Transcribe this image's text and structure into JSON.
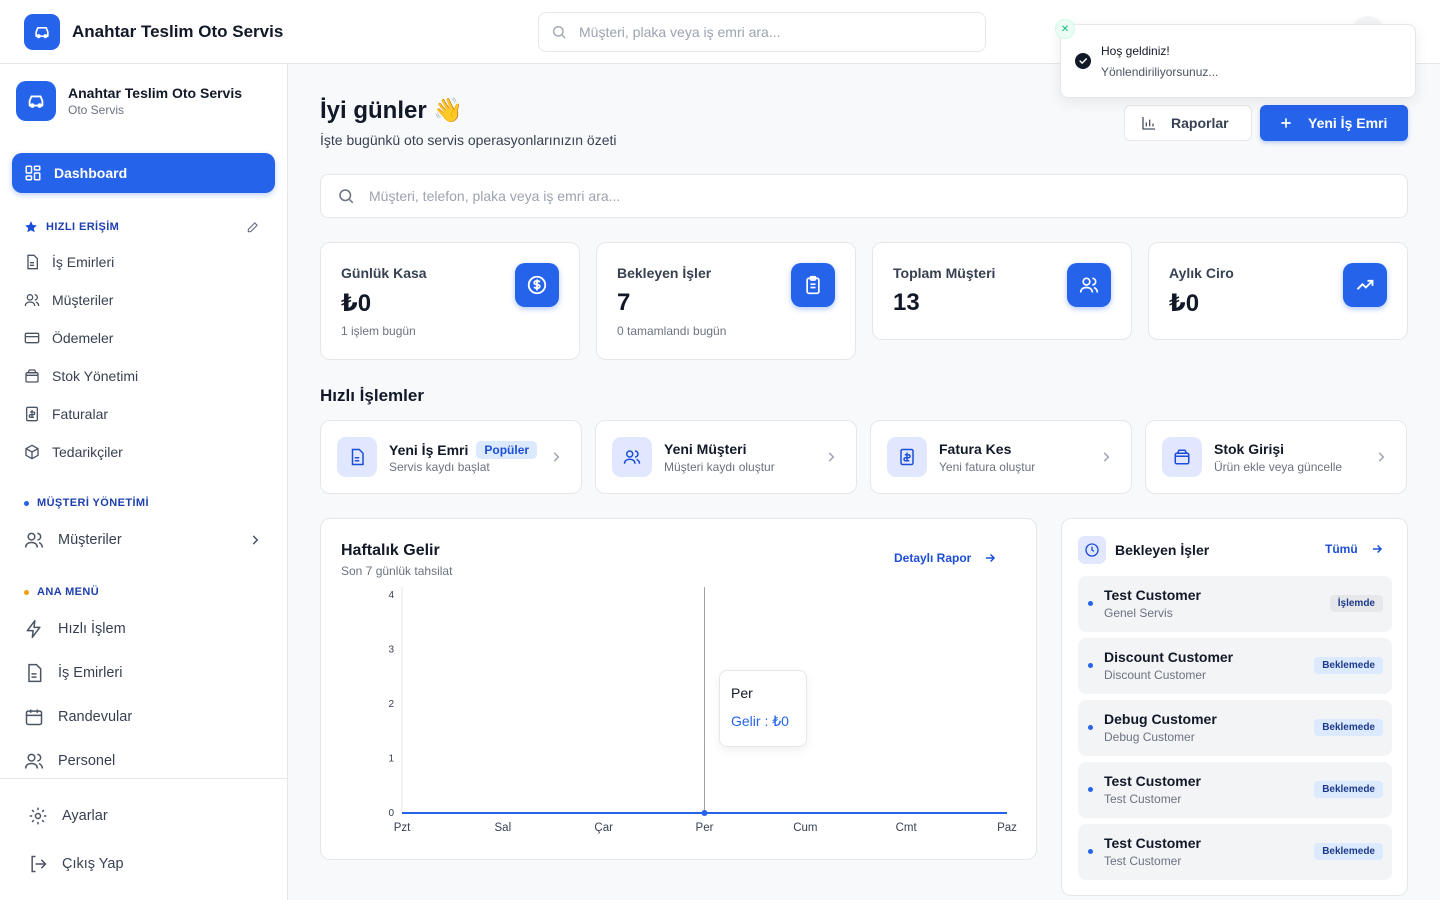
{
  "header": {
    "brand": "Anahtar Teslim Oto Servis",
    "search_placeholder": "Müşteri, plaka veya iş emri ara..."
  },
  "toast": {
    "title": "Hoş geldiniz!",
    "message": "Yönlendiriliyorsunuz..."
  },
  "sidebar": {
    "brand_name": "Anahtar Teslim Oto Servis",
    "brand_sub": "Oto Servis",
    "active_item": "Dashboard",
    "quick_section": "HIZLI ERİŞİM",
    "quick_items": [
      "İş Emirleri",
      "Müşteriler",
      "Ödemeler",
      "Stok Yönetimi",
      "Faturalar",
      "Tedarikçiler"
    ],
    "customer_section": "MÜŞTERİ YÖNETİMİ",
    "customer_items": [
      "Müşteriler"
    ],
    "main_section": "ANA MENÜ",
    "main_items": [
      "Hızlı İşlem",
      "İş Emirleri",
      "Randevular",
      "Personel"
    ],
    "settings": "Ayarlar",
    "logout": "Çıkış Yap"
  },
  "main": {
    "greeting": "İyi günler 👋",
    "subtitle": "İşte bugünkü oto servis operasyonlarınızın özeti",
    "reports_button": "Raporlar",
    "new_order_button": "Yeni İş Emri",
    "search_placeholder": "Müşteri, telefon, plaka veya iş emri ara..."
  },
  "stats": [
    {
      "label": "Günlük Kasa",
      "value": "₺0",
      "sub": "1 işlem bugün",
      "icon": "dollar-icon"
    },
    {
      "label": "Bekleyen İşler",
      "value": "7",
      "sub": "0 tamamlandı bugün",
      "icon": "clipboard-icon"
    },
    {
      "label": "Toplam Müşteri",
      "value": "13",
      "sub": "",
      "icon": "users-icon"
    },
    {
      "label": "Aylık Ciro",
      "value": "₺0",
      "sub": "",
      "icon": "trending-up-icon"
    }
  ],
  "quick_actions": {
    "title": "Hızlı İşlemler",
    "items": [
      {
        "title": "Yeni İş Emri",
        "sub": "Servis kaydı başlat",
        "badge": "Popüler",
        "icon": "document-icon"
      },
      {
        "title": "Yeni Müşteri",
        "sub": "Müşteri kaydı oluştur",
        "icon": "users-icon"
      },
      {
        "title": "Fatura Kes",
        "sub": "Yeni fatura oluştur",
        "icon": "invoice-icon"
      },
      {
        "title": "Stok Girişi",
        "sub": "Ürün ekle veya güncelle",
        "icon": "box-icon"
      }
    ]
  },
  "weekly_chart": {
    "title": "Haftalık Gelir",
    "subtitle": "Son 7 günlük tahsilat",
    "link": "Detaylı Rapor",
    "tooltip_day": "Per",
    "tooltip_value": "Gelir : ₺0"
  },
  "chart_data": {
    "type": "line",
    "categories": [
      "Pzt",
      "Sal",
      "Çar",
      "Per",
      "Cum",
      "Cmt",
      "Paz"
    ],
    "values": [
      0,
      0,
      0,
      0,
      0,
      0,
      0
    ],
    "y_ticks": [
      0,
      1,
      2,
      3,
      4
    ],
    "ylim": [
      0,
      4
    ],
    "color": "#2563eb",
    "highlighted_category": "Per"
  },
  "pending": {
    "title": "Bekleyen İşler",
    "link": "Tümü",
    "items": [
      {
        "name": "Test Customer",
        "sub": "Genel Servis",
        "status": "İşlemde"
      },
      {
        "name": "Discount Customer",
        "sub": "Discount Customer",
        "status": "Beklemede"
      },
      {
        "name": "Debug Customer",
        "sub": "Debug Customer",
        "status": "Beklemede"
      },
      {
        "name": "Test Customer",
        "sub": "Test Customer",
        "status": "Beklemede"
      },
      {
        "name": "Test Customer",
        "sub": "Test Customer",
        "status": "Beklemede"
      }
    ]
  }
}
